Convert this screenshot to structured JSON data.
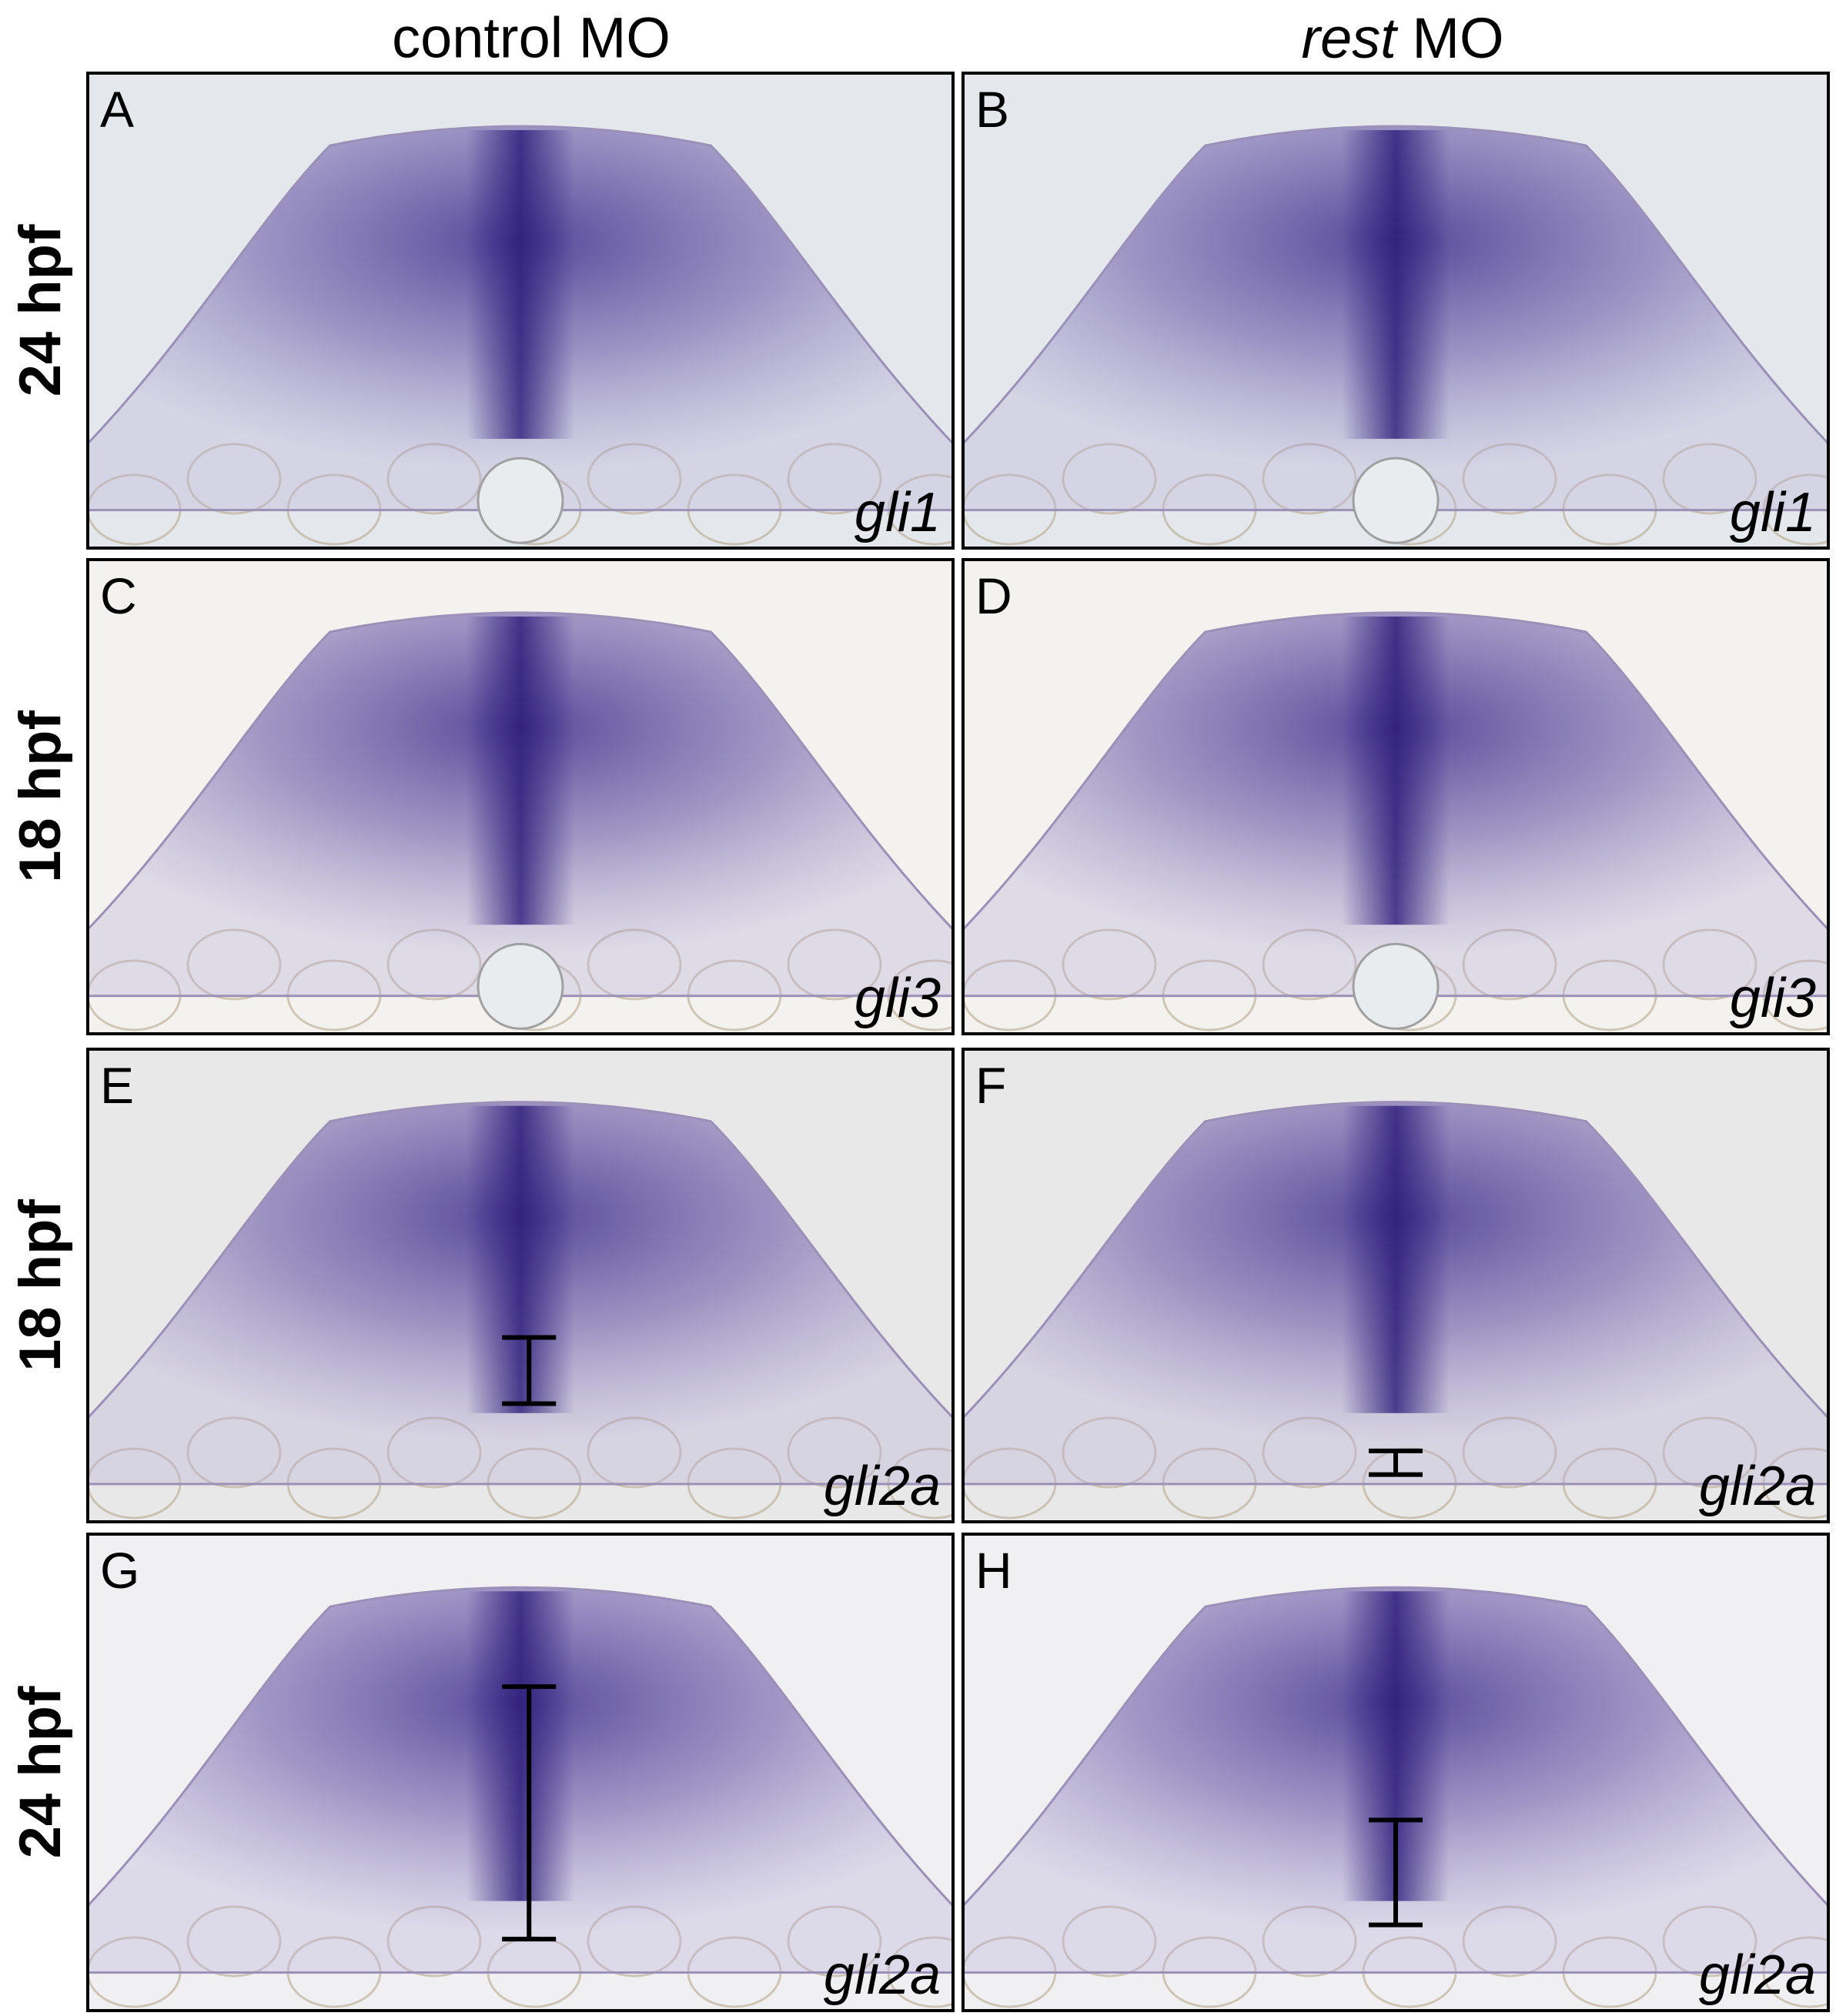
{
  "column_headers": [
    {
      "text": "control MO"
    },
    {
      "italic": "rest",
      "text": "MO"
    }
  ],
  "row_labels": [
    "24 hpf",
    "18 hpf",
    "18 hpf",
    "24 hpf"
  ],
  "panels": [
    {
      "letter": "A",
      "gene": "gli1"
    },
    {
      "letter": "B",
      "gene": "gli1"
    },
    {
      "letter": "C",
      "gene": "gli3"
    },
    {
      "letter": "D",
      "gene": "gli3"
    },
    {
      "letter": "E",
      "gene": "gli2a"
    },
    {
      "letter": "F",
      "gene": "gli2a"
    },
    {
      "letter": "G",
      "gene": "gli2a"
    },
    {
      "letter": "H",
      "gene": "gli2a"
    }
  ]
}
